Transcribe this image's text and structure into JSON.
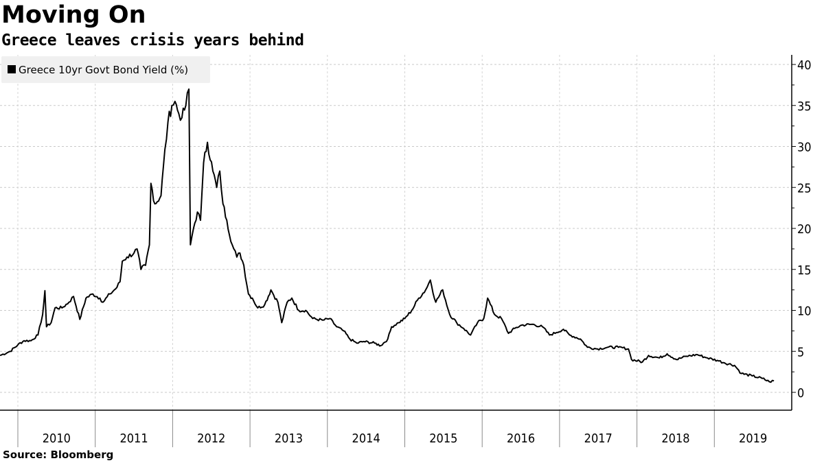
{
  "header": {
    "title": "Moving On",
    "subtitle": "Greece leaves crisis years behind"
  },
  "footer": {
    "source": "Source: Bloomberg"
  },
  "chart_data": {
    "type": "line",
    "title": "Moving On",
    "subtitle": "Greece leaves crisis years behind",
    "xlabel": "",
    "ylabel": "",
    "xlim": [
      2009.77,
      2019.9
    ],
    "ylim": [
      -2.2,
      41
    ],
    "yticks": [
      0,
      5,
      10,
      15,
      20,
      25,
      30,
      35,
      40
    ],
    "xtick_labels": [
      "2010",
      "2011",
      "2012",
      "2013",
      "2014",
      "2015",
      "2016",
      "2017",
      "2018",
      "2019"
    ],
    "grid": true,
    "y_axis_side": "right",
    "legend_position": "top-left",
    "series": [
      {
        "name": "Greece 10yr Govt Bond Yield (%)",
        "color": "#000000",
        "points": [
          [
            2009.77,
            4.5
          ],
          [
            2009.9,
            5.0
          ],
          [
            2010.0,
            5.8
          ],
          [
            2010.08,
            6.3
          ],
          [
            2010.17,
            6.3
          ],
          [
            2010.26,
            7.0
          ],
          [
            2010.32,
            9.5
          ],
          [
            2010.35,
            12.4
          ],
          [
            2010.37,
            8.0
          ],
          [
            2010.43,
            8.5
          ],
          [
            2010.48,
            10.3
          ],
          [
            2010.57,
            10.3
          ],
          [
            2010.66,
            11.0
          ],
          [
            2010.72,
            11.7
          ],
          [
            2010.8,
            8.9
          ],
          [
            2010.88,
            11.5
          ],
          [
            2010.97,
            12.0
          ],
          [
            2011.06,
            11.5
          ],
          [
            2011.1,
            11.0
          ],
          [
            2011.19,
            12.0
          ],
          [
            2011.28,
            12.8
          ],
          [
            2011.32,
            13.5
          ],
          [
            2011.35,
            16.0
          ],
          [
            2011.41,
            16.5
          ],
          [
            2011.5,
            17.0
          ],
          [
            2011.54,
            17.5
          ],
          [
            2011.59,
            15.0
          ],
          [
            2011.65,
            15.5
          ],
          [
            2011.7,
            18.0
          ],
          [
            2011.72,
            25.5
          ],
          [
            2011.77,
            23.0
          ],
          [
            2011.85,
            24.0
          ],
          [
            2011.88,
            27.5
          ],
          [
            2011.94,
            33.0
          ],
          [
            2011.99,
            35.0
          ],
          [
            2012.03,
            35.5
          ],
          [
            2012.08,
            34.0
          ],
          [
            2012.12,
            33.5
          ],
          [
            2012.17,
            35.0
          ],
          [
            2012.21,
            37.0
          ],
          [
            2012.23,
            18.0
          ],
          [
            2012.27,
            20.0
          ],
          [
            2012.32,
            22.0
          ],
          [
            2012.36,
            21.0
          ],
          [
            2012.4,
            28.0
          ],
          [
            2012.45,
            30.5
          ],
          [
            2012.52,
            27.0
          ],
          [
            2012.57,
            25.0
          ],
          [
            2012.61,
            27.0
          ],
          [
            2012.65,
            23.0
          ],
          [
            2012.7,
            21.0
          ],
          [
            2012.77,
            18.0
          ],
          [
            2012.83,
            16.5
          ],
          [
            2012.87,
            17.0
          ],
          [
            2012.92,
            15.5
          ],
          [
            2012.98,
            12.0
          ],
          [
            2013.03,
            11.5
          ],
          [
            2013.1,
            10.3
          ],
          [
            2013.19,
            10.7
          ],
          [
            2013.27,
            12.5
          ],
          [
            2013.36,
            11.0
          ],
          [
            2013.41,
            8.5
          ],
          [
            2013.48,
            11.0
          ],
          [
            2013.54,
            11.5
          ],
          [
            2013.63,
            10.0
          ],
          [
            2013.72,
            10.0
          ],
          [
            2013.81,
            9.0
          ],
          [
            2013.94,
            8.8
          ],
          [
            2014.03,
            9.0
          ],
          [
            2014.12,
            8.0
          ],
          [
            2014.21,
            7.5
          ],
          [
            2014.29,
            6.5
          ],
          [
            2014.38,
            6.0
          ],
          [
            2014.47,
            6.2
          ],
          [
            2014.61,
            6.0
          ],
          [
            2014.69,
            5.7
          ],
          [
            2014.78,
            6.5
          ],
          [
            2014.83,
            8.0
          ],
          [
            2014.92,
            8.5
          ],
          [
            2015.0,
            9.0
          ],
          [
            2015.09,
            10.0
          ],
          [
            2015.18,
            11.5
          ],
          [
            2015.27,
            12.5
          ],
          [
            2015.33,
            13.7
          ],
          [
            2015.4,
            11.0
          ],
          [
            2015.49,
            12.5
          ],
          [
            2015.58,
            9.5
          ],
          [
            2015.67,
            8.5
          ],
          [
            2015.76,
            7.8
          ],
          [
            2015.85,
            7.0
          ],
          [
            2015.94,
            8.5
          ],
          [
            2016.02,
            9.0
          ],
          [
            2016.07,
            11.5
          ],
          [
            2016.16,
            9.5
          ],
          [
            2016.25,
            9.0
          ],
          [
            2016.34,
            7.2
          ],
          [
            2016.42,
            7.8
          ],
          [
            2016.51,
            8.2
          ],
          [
            2016.65,
            8.3
          ],
          [
            2016.78,
            8.0
          ],
          [
            2016.87,
            7.0
          ],
          [
            2016.96,
            7.3
          ],
          [
            2017.05,
            7.7
          ],
          [
            2017.13,
            7.0
          ],
          [
            2017.27,
            6.5
          ],
          [
            2017.36,
            5.5
          ],
          [
            2017.49,
            5.3
          ],
          [
            2017.62,
            5.5
          ],
          [
            2017.76,
            5.5
          ],
          [
            2017.89,
            5.3
          ],
          [
            2017.93,
            4.0
          ],
          [
            2018.07,
            3.7
          ],
          [
            2018.15,
            4.5
          ],
          [
            2018.29,
            4.2
          ],
          [
            2018.39,
            4.7
          ],
          [
            2018.51,
            4.0
          ],
          [
            2018.64,
            4.4
          ],
          [
            2018.78,
            4.6
          ],
          [
            2018.91,
            4.2
          ],
          [
            2019.04,
            3.9
          ],
          [
            2019.13,
            3.6
          ],
          [
            2019.26,
            3.3
          ],
          [
            2019.35,
            2.3
          ],
          [
            2019.49,
            2.0
          ],
          [
            2019.62,
            1.7
          ],
          [
            2019.71,
            1.3
          ],
          [
            2019.77,
            1.4
          ]
        ]
      }
    ]
  }
}
